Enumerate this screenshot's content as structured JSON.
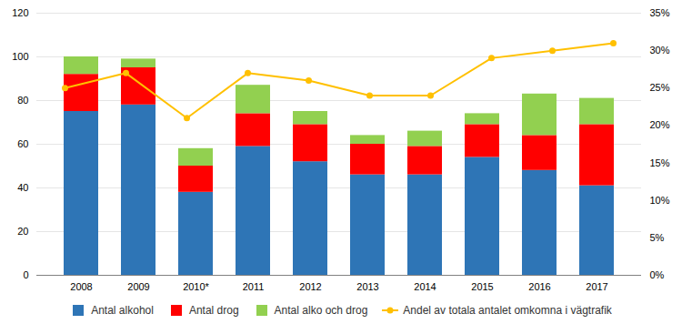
{
  "chart_data": {
    "type": "bar",
    "stacked": true,
    "categories": [
      "2008",
      "2009",
      "2010*",
      "2011",
      "2012",
      "2013",
      "2014",
      "2015",
      "2016",
      "2017"
    ],
    "series": [
      {
        "name": "Antal alkohol",
        "color": "#2e75b6",
        "values": [
          75,
          78,
          38,
          59,
          52,
          46,
          46,
          54,
          48,
          41
        ]
      },
      {
        "name": "Antal drog",
        "color": "#ff0000",
        "values": [
          17,
          17,
          12,
          15,
          17,
          14,
          13,
          15,
          16,
          28
        ]
      },
      {
        "name": "Antal alko och drog",
        "color": "#92d050",
        "values": [
          8,
          4,
          8,
          13,
          6,
          4,
          7,
          5,
          19,
          12
        ]
      },
      {
        "name": "Andel av totala antalet omkomna i vägtrafik",
        "type": "line",
        "axis": "y2",
        "color": "#ffc000",
        "marker": "o",
        "values": [
          25,
          27,
          21,
          27,
          26,
          24,
          24,
          29,
          30,
          31
        ]
      }
    ],
    "ylim": [
      0,
      120
    ],
    "yticks": [
      0,
      20,
      40,
      60,
      80,
      100,
      120
    ],
    "y2lim": [
      0,
      35
    ],
    "y2ticks": [
      {
        "value": 0,
        "label": "0%"
      },
      {
        "value": 5,
        "label": "5%"
      },
      {
        "value": 10,
        "label": "10%"
      },
      {
        "value": 15,
        "label": "15%"
      },
      {
        "value": 20,
        "label": "20%"
      },
      {
        "value": 25,
        "label": "25%"
      },
      {
        "value": 30,
        "label": "30%"
      },
      {
        "value": 35,
        "label": "35%"
      }
    ],
    "grid": true,
    "legend": "bottom"
  }
}
